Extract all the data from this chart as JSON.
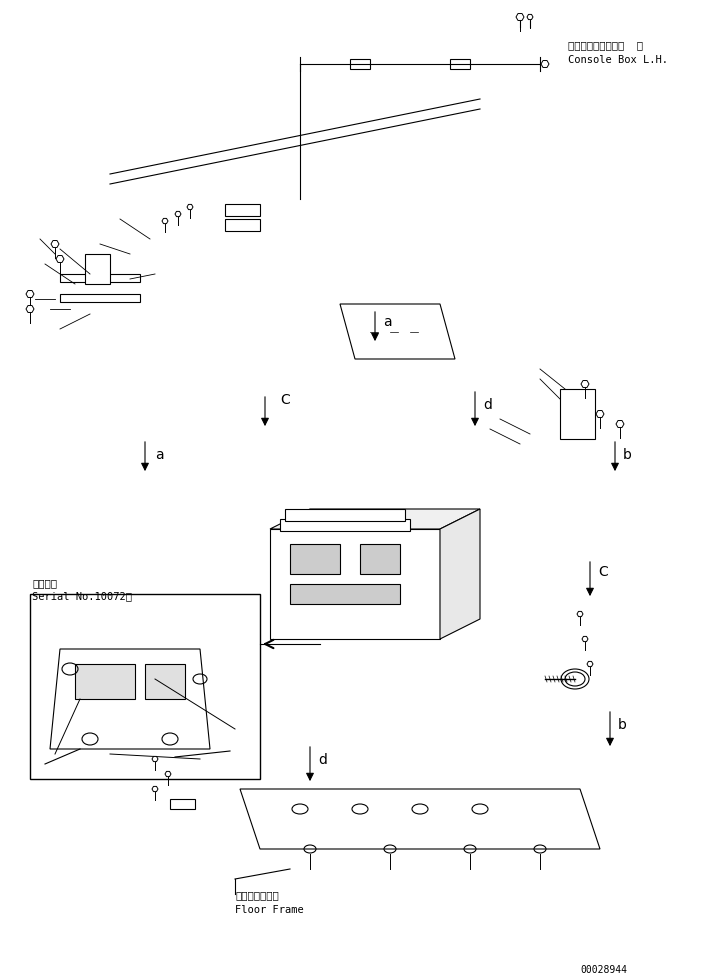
{
  "bg_color": "#ffffff",
  "line_color": "#000000",
  "fig_width": 7.03,
  "fig_height": 9.78,
  "dpi": 100,
  "labels": {
    "console_box_jp": "コンソールボックス  左",
    "console_box_en": "Console Box L.H.",
    "serial_jp": "適用号案",
    "serial_en": "Serial No.10072～",
    "floor_frame_jp": "フロアフレーム",
    "floor_frame_en": "Floor Frame",
    "part_id": "00028944"
  },
  "label_letters": [
    "a",
    "b",
    "c",
    "d",
    "C",
    "a",
    "b",
    "d"
  ]
}
